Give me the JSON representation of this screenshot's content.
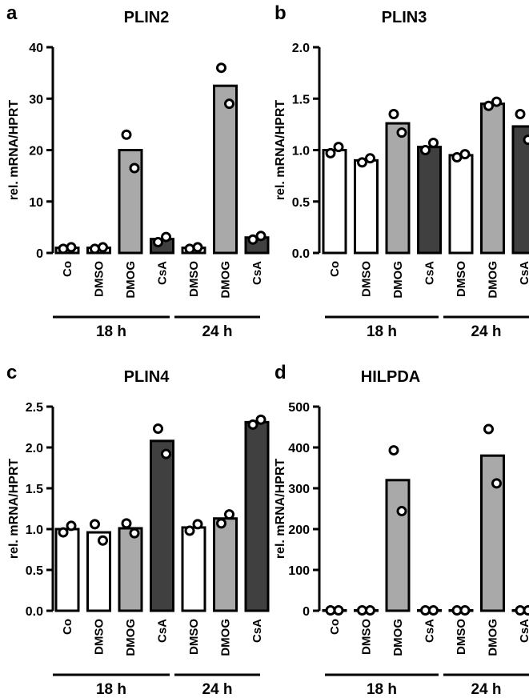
{
  "chart_data": [
    {
      "panel": "a",
      "title": "PLIN2",
      "type": "bar",
      "ylabel": "rel. mRNA/HPRT",
      "ylim": [
        0,
        40
      ],
      "yticks": [
        0,
        10,
        20,
        30,
        40
      ],
      "ytick_labels": [
        "0",
        "10",
        "20",
        "30",
        "40"
      ],
      "categories": [
        "Co",
        "DMSO",
        "DMOG",
        "CsA",
        "DMSO",
        "DMOG",
        "CsA"
      ],
      "values": [
        1.0,
        1.0,
        20.0,
        2.7,
        1.0,
        32.5,
        3.0
      ],
      "points": [
        [
          0.8,
          1.1
        ],
        [
          0.8,
          1.1
        ],
        [
          23.0,
          16.5
        ],
        [
          2.1,
          3.1
        ],
        [
          0.8,
          1.1
        ],
        [
          36.0,
          29.0
        ],
        [
          2.6,
          3.3
        ]
      ],
      "fills": [
        "#ffffff",
        "#ffffff",
        "#a9a9a9",
        "#404040",
        "#ffffff",
        "#a9a9a9",
        "#404040"
      ],
      "groups": [
        {
          "label": "18 h",
          "from": 0,
          "to": 3
        },
        {
          "label": "24 h",
          "from": 4,
          "to": 6
        }
      ]
    },
    {
      "panel": "b",
      "title": "PLIN3",
      "type": "bar",
      "ylabel": "rel. mRNA/HPRT",
      "ylim": [
        0,
        2.0
      ],
      "yticks": [
        0,
        0.5,
        1.0,
        1.5,
        2.0
      ],
      "ytick_labels": [
        "0.0",
        "0.5",
        "1.0",
        "1.5",
        "2.0"
      ],
      "categories": [
        "Co",
        "DMSO",
        "DMOG",
        "CsA",
        "DMSO",
        "DMOG",
        "CsA"
      ],
      "values": [
        1.0,
        0.9,
        1.26,
        1.03,
        0.95,
        1.45,
        1.23
      ],
      "points": [
        [
          0.97,
          1.03
        ],
        [
          0.88,
          0.92
        ],
        [
          1.35,
          1.17
        ],
        [
          1.0,
          1.07
        ],
        [
          0.93,
          0.96
        ],
        [
          1.43,
          1.47
        ],
        [
          1.35,
          1.1
        ]
      ],
      "fills": [
        "#ffffff",
        "#ffffff",
        "#a9a9a9",
        "#404040",
        "#ffffff",
        "#a9a9a9",
        "#404040"
      ],
      "groups": [
        {
          "label": "18 h",
          "from": 0,
          "to": 3
        },
        {
          "label": "24 h",
          "from": 4,
          "to": 6
        }
      ]
    },
    {
      "panel": "c",
      "title": "PLIN4",
      "type": "bar",
      "ylabel": "rel. mRNA/HPRT",
      "ylim": [
        0,
        2.5
      ],
      "yticks": [
        0,
        0.5,
        1.0,
        1.5,
        2.0,
        2.5
      ],
      "ytick_labels": [
        "0.0",
        "0.5",
        "1.0",
        "1.5",
        "2.0",
        "2.5"
      ],
      "categories": [
        "Co",
        "DMSO",
        "DMOG",
        "CsA",
        "DMSO",
        "DMOG",
        "CsA"
      ],
      "values": [
        1.0,
        0.96,
        1.01,
        2.08,
        1.02,
        1.13,
        2.31
      ],
      "points": [
        [
          0.96,
          1.04
        ],
        [
          1.06,
          0.86
        ],
        [
          1.07,
          0.95
        ],
        [
          2.23,
          1.92
        ],
        [
          0.98,
          1.06
        ],
        [
          1.07,
          1.18
        ],
        [
          2.28,
          2.34
        ]
      ],
      "fills": [
        "#ffffff",
        "#ffffff",
        "#a9a9a9",
        "#404040",
        "#ffffff",
        "#a9a9a9",
        "#404040"
      ],
      "groups": [
        {
          "label": "18 h",
          "from": 0,
          "to": 3
        },
        {
          "label": "24 h",
          "from": 4,
          "to": 6
        }
      ]
    },
    {
      "panel": "d",
      "title": "HILPDA",
      "type": "bar",
      "ylabel": "rel. mRNA/HPRT",
      "ylim": [
        0,
        500
      ],
      "yticks": [
        0,
        100,
        200,
        300,
        400,
        500
      ],
      "ytick_labels": [
        "0",
        "100",
        "200",
        "300",
        "400",
        "500"
      ],
      "categories": [
        "Co",
        "DMSO",
        "DMOG",
        "CsA",
        "DMSO",
        "DMOG",
        "CsA"
      ],
      "values": [
        1,
        1,
        320,
        1,
        1,
        380,
        1
      ],
      "points": [
        [
          1,
          1
        ],
        [
          1,
          1
        ],
        [
          393,
          244
        ],
        [
          1,
          1
        ],
        [
          1,
          1
        ],
        [
          445,
          312
        ],
        [
          1,
          1
        ]
      ],
      "fills": [
        "#ffffff",
        "#ffffff",
        "#a9a9a9",
        "#404040",
        "#ffffff",
        "#a9a9a9",
        "#404040"
      ],
      "groups": [
        {
          "label": "18 h",
          "from": 0,
          "to": 3
        },
        {
          "label": "24 h",
          "from": 4,
          "to": 6
        }
      ]
    }
  ]
}
